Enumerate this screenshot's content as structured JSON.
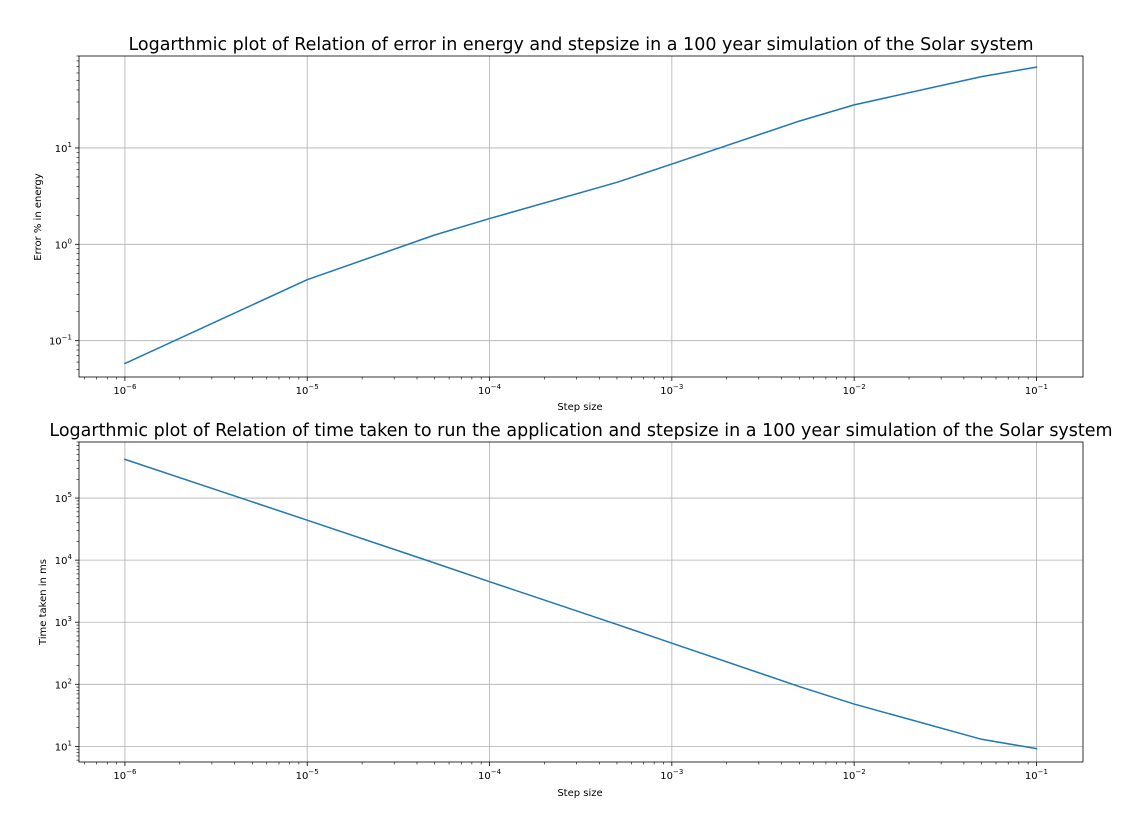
{
  "figure": {
    "background": "#ffffff"
  },
  "chart_data": [
    {
      "type": "line",
      "title": "Logarthmic plot of Relation of error in energy and stepsize in a 100 year simulation of the Solar system",
      "xlabel": "Step size",
      "ylabel": "Error % in energy",
      "xscale": "log",
      "yscale": "log",
      "xlim": [
        5.6e-07,
        0.18
      ],
      "ylim": [
        0.042,
        90
      ],
      "grid": true,
      "x_ticks": [
        {
          "value": 1e-06,
          "base": "10",
          "exp": "−6"
        },
        {
          "value": 1e-05,
          "base": "10",
          "exp": "−5"
        },
        {
          "value": 0.0001,
          "base": "10",
          "exp": "−4"
        },
        {
          "value": 0.001,
          "base": "10",
          "exp": "−3"
        },
        {
          "value": 0.01,
          "base": "10",
          "exp": "−2"
        },
        {
          "value": 0.1,
          "base": "10",
          "exp": "−1"
        }
      ],
      "y_ticks": [
        {
          "value": 0.1,
          "base": "10",
          "exp": "−1"
        },
        {
          "value": 1,
          "base": "10",
          "exp": "0"
        },
        {
          "value": 10,
          "base": "10",
          "exp": "1"
        }
      ],
      "series": [
        {
          "color": "#1f77b4",
          "x": [
            1e-06,
            1e-05,
            5e-05,
            0.0001,
            0.0005,
            0.001,
            0.005,
            0.01,
            0.05,
            0.1
          ],
          "y": [
            0.058,
            0.43,
            1.25,
            1.85,
            4.4,
            6.8,
            19,
            28,
            55,
            69
          ]
        }
      ]
    },
    {
      "type": "line",
      "title": "Logarthmic plot of Relation of time taken to run the application and stepsize in a 100 year simulation of the Solar system",
      "xlabel": "Step size",
      "ylabel": "Time taken in ms",
      "xscale": "log",
      "yscale": "log",
      "xlim": [
        5.6e-07,
        0.18
      ],
      "ylim": [
        5.6,
        800000
      ],
      "grid": true,
      "x_ticks": [
        {
          "value": 1e-06,
          "base": "10",
          "exp": "−6"
        },
        {
          "value": 1e-05,
          "base": "10",
          "exp": "−5"
        },
        {
          "value": 0.0001,
          "base": "10",
          "exp": "−4"
        },
        {
          "value": 0.001,
          "base": "10",
          "exp": "−3"
        },
        {
          "value": 0.01,
          "base": "10",
          "exp": "−2"
        },
        {
          "value": 0.1,
          "base": "10",
          "exp": "−1"
        }
      ],
      "y_ticks": [
        {
          "value": 10,
          "base": "10",
          "exp": "1"
        },
        {
          "value": 100,
          "base": "10",
          "exp": "2"
        },
        {
          "value": 1000,
          "base": "10",
          "exp": "3"
        },
        {
          "value": 10000,
          "base": "10",
          "exp": "4"
        },
        {
          "value": 100000,
          "base": "10",
          "exp": "5"
        }
      ],
      "series": [
        {
          "color": "#1f77b4",
          "x": [
            1e-06,
            1e-05,
            5e-05,
            0.0001,
            0.0005,
            0.001,
            0.005,
            0.01,
            0.05,
            0.1
          ],
          "y": [
            420000,
            44000,
            9000,
            4500,
            920,
            460,
            92,
            48,
            13,
            9.2
          ]
        }
      ]
    }
  ]
}
